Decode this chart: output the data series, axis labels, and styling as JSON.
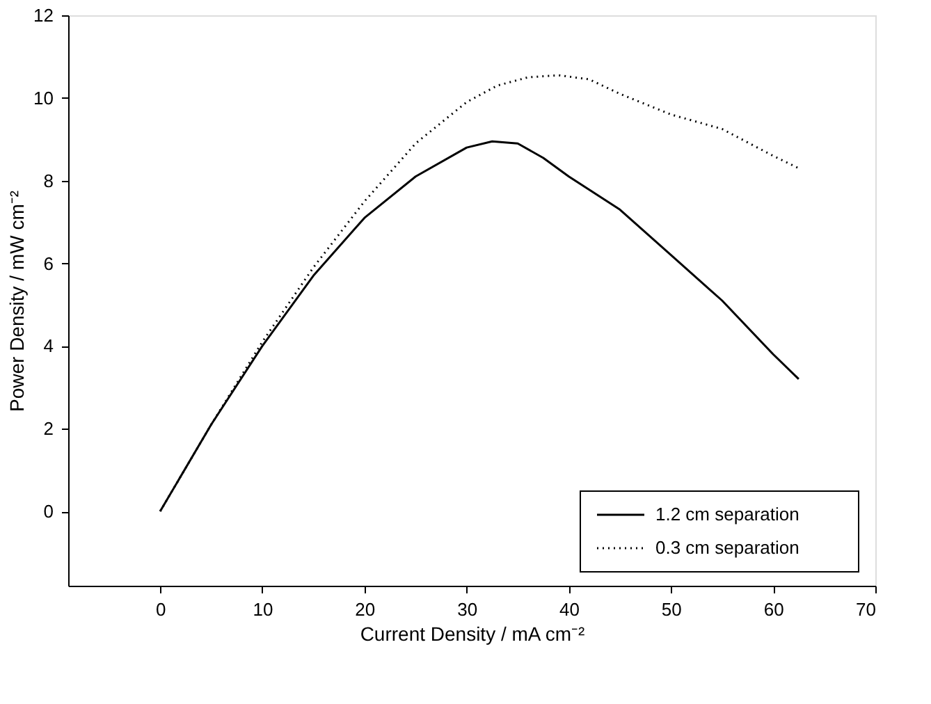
{
  "chart_data": {
    "type": "line",
    "xlabel": "Current Density / mA cm⁻²",
    "ylabel": "Power Density / mW cm⁻²",
    "xlim": [
      -9,
      70
    ],
    "xticks": [
      0,
      10,
      20,
      30,
      40,
      50,
      60,
      70
    ],
    "ylim": [
      -1.8,
      12
    ],
    "yticks": [
      0,
      2,
      4,
      6,
      8,
      10,
      12
    ],
    "grid": false,
    "legend": "bottom right",
    "marker": "none",
    "series": [
      {
        "name": "1.2 cm separation",
        "color": "#000000",
        "line_style": "solid",
        "x": [
          0,
          5,
          10,
          15,
          20,
          25,
          30,
          32.5,
          35,
          37.5,
          40,
          45,
          50,
          55,
          60,
          62.5
        ],
        "values": [
          0,
          2.1,
          4.0,
          5.7,
          7.1,
          8.1,
          8.8,
          8.95,
          8.9,
          8.55,
          8.1,
          7.3,
          6.2,
          5.1,
          3.8,
          3.2
        ]
      },
      {
        "name": "0.3 cm separation",
        "color": "#000000",
        "line_style": "dotted",
        "x": [
          0,
          5,
          10,
          15,
          20,
          25,
          30,
          33,
          36,
          39,
          42,
          45,
          50,
          55,
          60,
          62.5
        ],
        "values": [
          0,
          2.1,
          4.1,
          5.9,
          7.5,
          8.9,
          9.9,
          10.3,
          10.5,
          10.55,
          10.45,
          10.1,
          9.6,
          9.25,
          8.6,
          8.3
        ]
      }
    ]
  }
}
